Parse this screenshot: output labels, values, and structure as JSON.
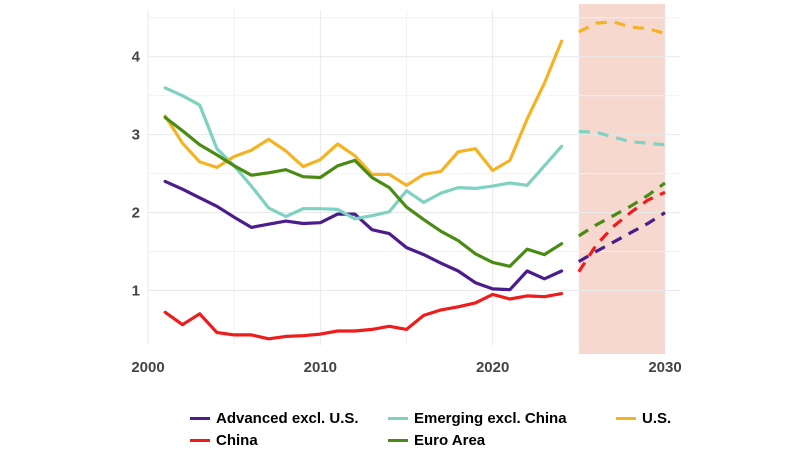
{
  "chart_data": {
    "type": "line",
    "title": "",
    "xlabel": "",
    "ylabel": "",
    "xlim": [
      2000,
      2030
    ],
    "ylim": [
      0.3,
      4.6
    ],
    "xticks": [
      2000,
      2010,
      2020,
      2030
    ],
    "yticks": [
      1,
      2,
      3,
      4
    ],
    "grid": true,
    "legend_position": "bottom",
    "forecast_shading": {
      "from": 2025,
      "to": 2030,
      "color": "#f6d8cf"
    },
    "series": [
      {
        "name": "Advanced excl. U.S.",
        "color": "#4b1c8c",
        "x": [
          2001,
          2002,
          2003,
          2004,
          2005,
          2006,
          2007,
          2008,
          2009,
          2010,
          2011,
          2012,
          2013,
          2014,
          2015,
          2016,
          2017,
          2018,
          2019,
          2020,
          2021,
          2022,
          2023,
          2024
        ],
        "values": [
          2.4,
          2.3,
          2.19,
          2.08,
          1.94,
          1.81,
          1.85,
          1.89,
          1.86,
          1.87,
          1.98,
          1.98,
          1.78,
          1.73,
          1.55,
          1.46,
          1.35,
          1.25,
          1.1,
          1.02,
          1.01,
          1.25,
          1.15,
          1.25
        ],
        "forecast_x": [
          2025,
          2026,
          2027,
          2028,
          2029,
          2030
        ],
        "forecast": [
          1.37,
          1.5,
          1.62,
          1.74,
          1.86,
          2.0
        ]
      },
      {
        "name": "Emerging excl. China",
        "color": "#7fd1c1",
        "x": [
          2001,
          2002,
          2003,
          2004,
          2005,
          2006,
          2007,
          2008,
          2009,
          2010,
          2011,
          2012,
          2013,
          2014,
          2015,
          2016,
          2017,
          2018,
          2019,
          2020,
          2021,
          2022,
          2023,
          2024
        ],
        "values": [
          3.6,
          3.5,
          3.38,
          2.82,
          2.6,
          2.34,
          2.06,
          1.95,
          2.05,
          2.05,
          2.04,
          1.92,
          1.96,
          2.01,
          2.28,
          2.13,
          2.25,
          2.32,
          2.31,
          2.34,
          2.38,
          2.35,
          2.6,
          2.85
        ],
        "forecast_x": [
          2025,
          2026,
          2027,
          2028,
          2029,
          2030
        ],
        "forecast": [
          3.04,
          3.03,
          2.97,
          2.91,
          2.89,
          2.87
        ]
      },
      {
        "name": "U.S.",
        "color": "#f5b324",
        "x": [
          2001,
          2002,
          2003,
          2004,
          2005,
          2006,
          2007,
          2008,
          2009,
          2010,
          2011,
          2012,
          2013,
          2014,
          2015,
          2016,
          2017,
          2018,
          2019,
          2020,
          2021,
          2022,
          2023,
          2024
        ],
        "values": [
          3.24,
          2.89,
          2.65,
          2.58,
          2.72,
          2.8,
          2.94,
          2.79,
          2.59,
          2.68,
          2.88,
          2.73,
          2.49,
          2.49,
          2.35,
          2.49,
          2.53,
          2.78,
          2.82,
          2.54,
          2.67,
          3.2,
          3.66,
          4.2
        ],
        "forecast_x": [
          2025,
          2026,
          2027,
          2028,
          2029,
          2030
        ],
        "forecast": [
          4.32,
          4.43,
          4.45,
          4.38,
          4.36,
          4.3
        ]
      },
      {
        "name": "China",
        "color": "#ee1c1c",
        "x": [
          2001,
          2002,
          2003,
          2004,
          2005,
          2006,
          2007,
          2008,
          2009,
          2010,
          2011,
          2012,
          2013,
          2014,
          2015,
          2016,
          2017,
          2018,
          2019,
          2020,
          2021,
          2022,
          2023,
          2024
        ],
        "values": [
          0.72,
          0.56,
          0.7,
          0.46,
          0.43,
          0.43,
          0.38,
          0.41,
          0.42,
          0.44,
          0.48,
          0.48,
          0.5,
          0.54,
          0.5,
          0.68,
          0.75,
          0.79,
          0.84,
          0.95,
          0.89,
          0.93,
          0.92,
          0.96
        ],
        "forecast_x": [
          2025,
          2026,
          2027,
          2028,
          2029,
          2030
        ],
        "forecast": [
          1.24,
          1.58,
          1.82,
          2.0,
          2.16,
          2.26
        ]
      },
      {
        "name": "Euro Area",
        "color": "#4a8c13",
        "x": [
          2001,
          2002,
          2003,
          2004,
          2005,
          2006,
          2007,
          2008,
          2009,
          2010,
          2011,
          2012,
          2013,
          2014,
          2015,
          2016,
          2017,
          2018,
          2019,
          2020,
          2021,
          2022,
          2023,
          2024
        ],
        "values": [
          3.22,
          3.05,
          2.87,
          2.74,
          2.6,
          2.48,
          2.51,
          2.55,
          2.46,
          2.45,
          2.6,
          2.67,
          2.45,
          2.32,
          2.07,
          1.91,
          1.76,
          1.64,
          1.47,
          1.36,
          1.31,
          1.53,
          1.46,
          1.6
        ],
        "forecast_x": [
          2025,
          2026,
          2027,
          2028,
          2029,
          2030
        ],
        "forecast": [
          1.7,
          1.84,
          1.96,
          2.08,
          2.22,
          2.38
        ]
      }
    ]
  },
  "legend": {
    "rows": [
      [
        {
          "label": "Advanced excl. U.S.",
          "color": "#4b1c8c"
        },
        {
          "label": "Emerging excl. China",
          "color": "#7fd1c1"
        },
        {
          "label": "U.S.",
          "color": "#f5b324"
        }
      ],
      [
        {
          "label": "China",
          "color": "#ee1c1c"
        },
        {
          "label": "Euro Area",
          "color": "#4a8c13"
        }
      ]
    ]
  }
}
